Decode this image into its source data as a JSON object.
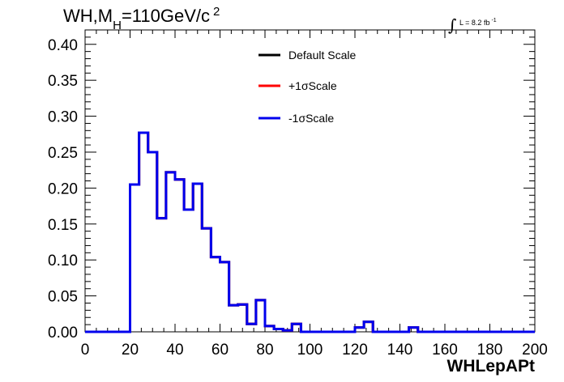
{
  "chart_data": {
    "type": "line",
    "title_parts": {
      "main": "WH,M",
      "sub": "H",
      "rest": "=110GeV/c",
      "sup": "2"
    },
    "lumi": {
      "symbol": "∫",
      "text": "L = 8.2 fb",
      "sup": "-1"
    },
    "xlabel": "WHLepAPt",
    "ylabel": "",
    "xlim": [
      0,
      200
    ],
    "ylim": [
      0,
      0.42
    ],
    "x_ticks": [
      "0",
      "20",
      "40",
      "60",
      "80",
      "100",
      "120",
      "140",
      "160",
      "180",
      "200"
    ],
    "y_ticks": [
      "0.00",
      "0.05",
      "0.10",
      "0.15",
      "0.20",
      "0.25",
      "0.30",
      "0.35",
      "0.40"
    ],
    "bin_edges": [
      0,
      4,
      8,
      12,
      16,
      20,
      24,
      28,
      32,
      36,
      40,
      44,
      48,
      52,
      56,
      60,
      64,
      68,
      72,
      76,
      80,
      84,
      88,
      92,
      96,
      100,
      104,
      108,
      112,
      116,
      120,
      124,
      128,
      132,
      136,
      140,
      144,
      148,
      152,
      156,
      160,
      164,
      168,
      172,
      176,
      180,
      184,
      188,
      192,
      196,
      200
    ],
    "series": [
      {
        "name": "Default Scale",
        "color": "#000000",
        "values": [
          0,
          0,
          0,
          0,
          0,
          0.205,
          0.277,
          0.25,
          0.158,
          0.222,
          0.212,
          0.17,
          0.206,
          0.144,
          0.104,
          0.097,
          0.037,
          0.038,
          0.011,
          0.044,
          0.008,
          0.004,
          0.002,
          0.011,
          0,
          0,
          0,
          0,
          0,
          0,
          0.006,
          0.014,
          0,
          0,
          0,
          0,
          0.006,
          0,
          0,
          0,
          0,
          0,
          0,
          0,
          0,
          0,
          0,
          0,
          0,
          0
        ]
      },
      {
        "name": "+1σScale",
        "color": "#ff0000",
        "values": [
          0,
          0,
          0,
          0,
          0,
          0.205,
          0.277,
          0.25,
          0.158,
          0.222,
          0.212,
          0.17,
          0.206,
          0.144,
          0.104,
          0.097,
          0.037,
          0.038,
          0.011,
          0.044,
          0.008,
          0.004,
          0.002,
          0.011,
          0,
          0,
          0,
          0,
          0,
          0,
          0.006,
          0.014,
          0,
          0,
          0,
          0,
          0.006,
          0,
          0,
          0,
          0,
          0,
          0,
          0,
          0,
          0,
          0,
          0,
          0,
          0
        ]
      },
      {
        "name": "-1σScale",
        "color": "#0000ee",
        "values": [
          0,
          0,
          0,
          0,
          0,
          0.205,
          0.277,
          0.25,
          0.158,
          0.222,
          0.212,
          0.17,
          0.206,
          0.144,
          0.104,
          0.097,
          0.037,
          0.038,
          0.011,
          0.044,
          0.008,
          0.004,
          0.002,
          0.011,
          0,
          0,
          0,
          0,
          0,
          0,
          0.006,
          0.014,
          0,
          0,
          0,
          0,
          0.006,
          0,
          0,
          0,
          0,
          0,
          0,
          0,
          0,
          0,
          0,
          0,
          0,
          0
        ]
      }
    ],
    "legend_position": "top-center",
    "grid": false
  }
}
